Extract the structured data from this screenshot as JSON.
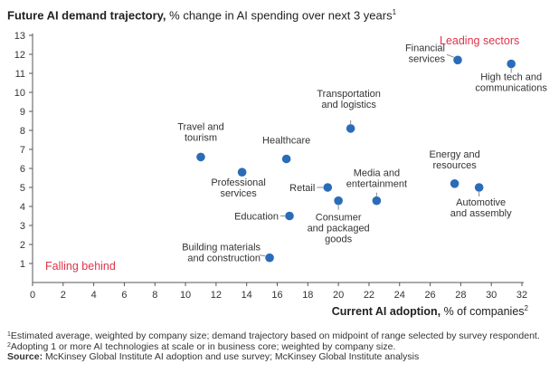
{
  "chart_data": {
    "type": "scatter",
    "title": "Future AI demand trajectory,",
    "title_rest": " % change in AI spending over next 3 years",
    "title_sup": "1",
    "xlabel": "Current AI adoption,",
    "xlabel_rest": " % of companies",
    "xlabel_sup": "2",
    "xlim": [
      0,
      32
    ],
    "ylim": [
      0,
      13
    ],
    "x_ticks": [
      0,
      2,
      4,
      6,
      8,
      10,
      12,
      14,
      16,
      18,
      20,
      22,
      24,
      26,
      28,
      30,
      32
    ],
    "y_ticks": [
      1,
      2,
      3,
      4,
      5,
      6,
      7,
      8,
      9,
      10,
      11,
      12,
      13
    ],
    "grid": false,
    "regions": [
      "Leading sectors",
      "Falling behind"
    ],
    "colors": {
      "marker": "#2b6cb8",
      "region": "#e0334b",
      "axis": "#555555"
    },
    "points": [
      {
        "label": [
          "Financial",
          "services"
        ],
        "x": 27.8,
        "y": 11.7
      },
      {
        "label": [
          "High tech and",
          "communications"
        ],
        "x": 31.3,
        "y": 11.5
      },
      {
        "label": [
          "Transportation",
          "and logistics"
        ],
        "x": 20.8,
        "y": 8.1
      },
      {
        "label": [
          "Travel and",
          "tourism"
        ],
        "x": 11.0,
        "y": 6.6
      },
      {
        "label": [
          "Healthcare"
        ],
        "x": 16.6,
        "y": 6.5
      },
      {
        "label": [
          "Professional",
          "services"
        ],
        "x": 13.7,
        "y": 5.8
      },
      {
        "label": [
          "Retail"
        ],
        "x": 19.3,
        "y": 5.0
      },
      {
        "label": [
          "Energy and",
          "resources"
        ],
        "x": 27.6,
        "y": 5.2
      },
      {
        "label": [
          "Automotive",
          "and assembly"
        ],
        "x": 29.2,
        "y": 5.0
      },
      {
        "label": [
          "Media and",
          "entertainment"
        ],
        "x": 22.5,
        "y": 4.3
      },
      {
        "label": [
          "Consumer",
          "and packaged",
          "goods"
        ],
        "x": 20.0,
        "y": 4.3
      },
      {
        "label": [
          "Education"
        ],
        "x": 16.8,
        "y": 3.5
      },
      {
        "label": [
          "Building materials",
          "and construction"
        ],
        "x": 15.5,
        "y": 1.3
      }
    ]
  },
  "footnotes": {
    "note1_sup": "1",
    "note1": "Estimated average, weighted by company size; demand trajectory based on midpoint of range selected by survey respondent.",
    "note2_sup": "2",
    "note2": "Adopting 1 or more AI technologies at scale or in business core; weighted by company size.",
    "source_label": "Source:",
    "source": " McKinsey Global Institute AI adoption and use survey; McKinsey Global Institute analysis"
  }
}
